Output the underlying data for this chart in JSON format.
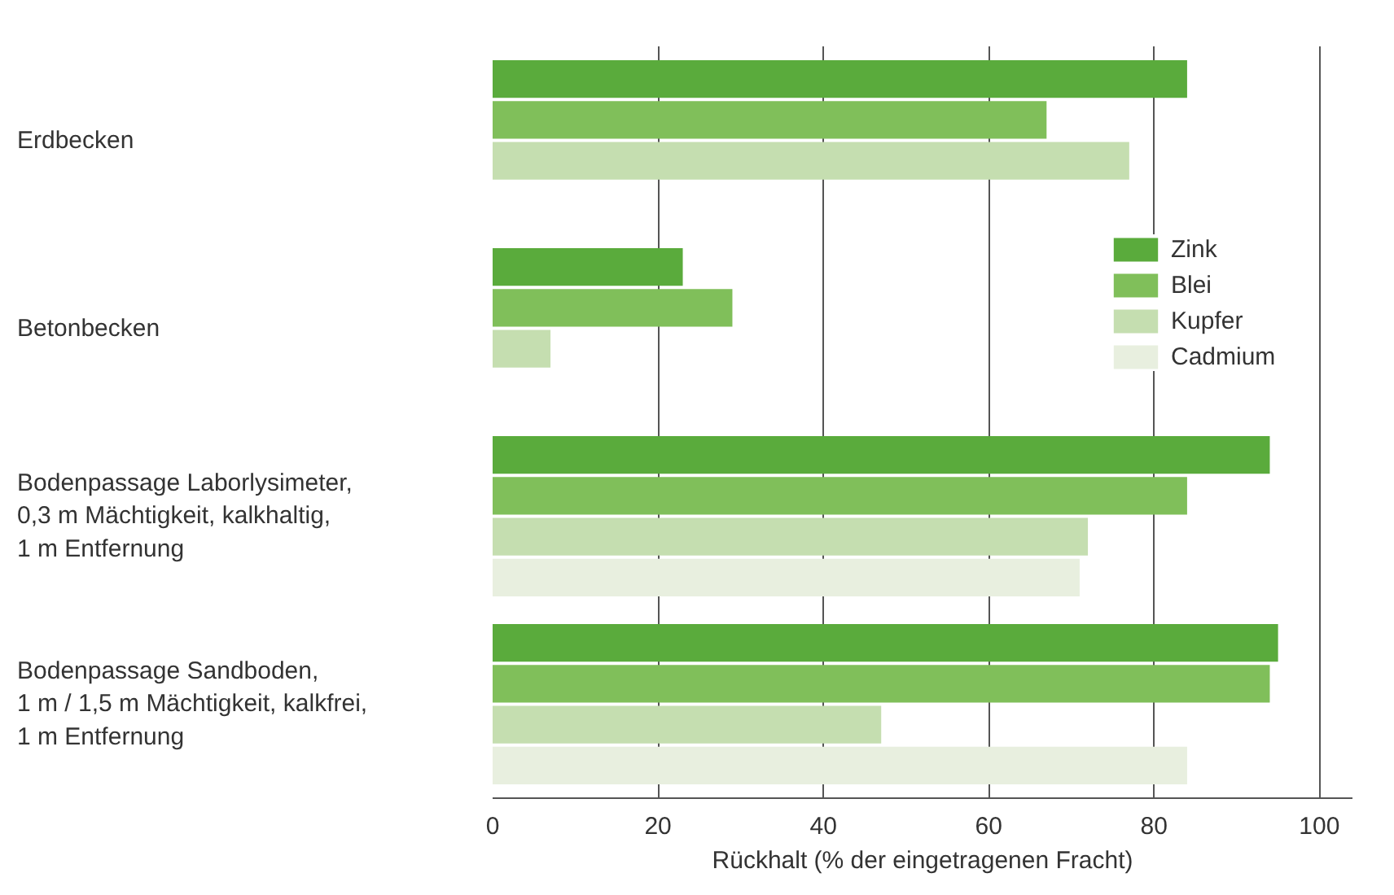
{
  "chart_data": {
    "type": "bar",
    "orientation": "horizontal",
    "xlabel": "Rückhalt (% der eingetragenen Fracht)",
    "categories": [
      "Erdbecken",
      "Betonbecken",
      "Bodenpassage Laborlysimeter,\n0,3 m Mächtigkeit, kalkhaltig,\n1 m Entfernung",
      "Bodenpassage Sandboden,\n1 m / 1,5 m Mächtigkeit, kalkfrei,\n1 m Entfernung"
    ],
    "series": [
      {
        "name": "Zink",
        "color": "#5aab3c",
        "values": [
          84,
          23,
          94,
          95
        ]
      },
      {
        "name": "Blei",
        "color": "#80bf5a",
        "values": [
          67,
          29,
          84,
          94
        ]
      },
      {
        "name": "Kupfer",
        "color": "#c5deb0",
        "values": [
          77,
          7,
          72,
          47
        ]
      },
      {
        "name": "Cadmium",
        "color": "#e8efdf",
        "values": [
          null,
          null,
          71,
          84
        ]
      }
    ],
    "xlim": [
      0,
      104
    ],
    "xticks": [
      0,
      20,
      40,
      60,
      80,
      100
    ],
    "grid": "x",
    "legend": "top right"
  }
}
